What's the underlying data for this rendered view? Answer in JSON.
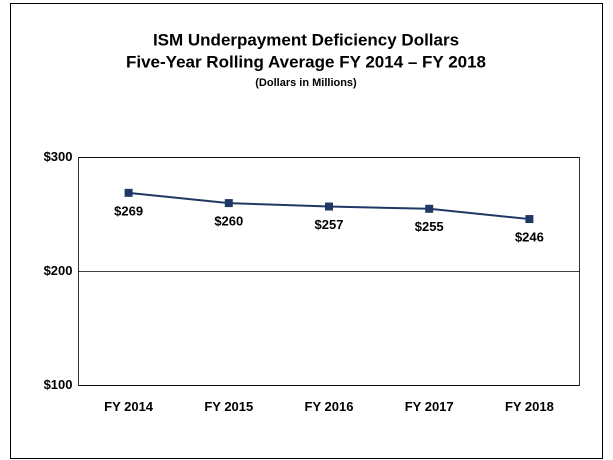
{
  "chart_data": {
    "type": "line",
    "title": "ISM Underpayment Deficiency Dollars",
    "subtitle": "Five-Year Rolling Average FY 2014 – FY 2018",
    "note": "(Dollars in Millions)",
    "categories": [
      "FY 2014",
      "FY 2015",
      "FY 2016",
      "FY 2017",
      "FY 2018"
    ],
    "values": [
      269,
      260,
      257,
      255,
      246
    ],
    "value_labels": [
      "$269",
      "$260",
      "$257",
      "$255",
      "$246"
    ],
    "color": "#1f3864",
    "ylim": [
      100,
      300
    ],
    "yticks": [
      {
        "value": 100,
        "label": "$100"
      },
      {
        "value": 200,
        "label": "$200"
      },
      {
        "value": 300,
        "label": "$300"
      }
    ],
    "grid": true
  }
}
